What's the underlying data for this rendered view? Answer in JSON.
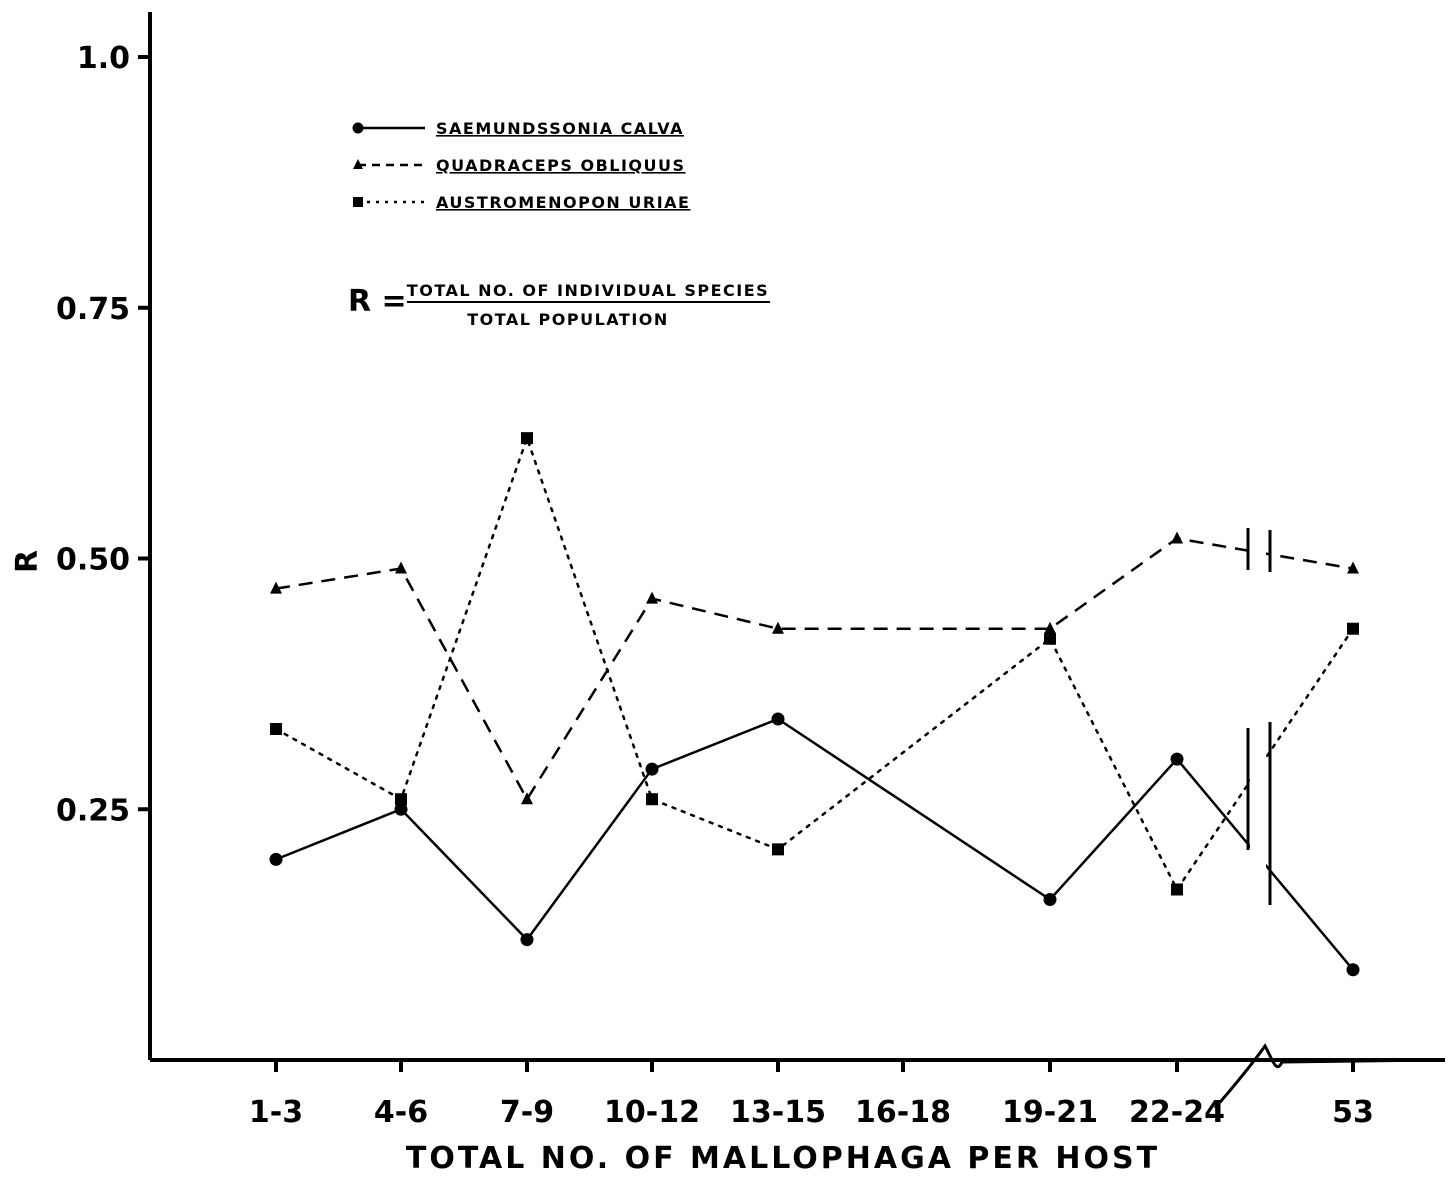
{
  "chart_data": {
    "type": "line",
    "categories": [
      "1-3",
      "4-6",
      "7-9",
      "10-12",
      "13-15",
      "16-18",
      "19-21",
      "22-24",
      "53"
    ],
    "xlabel": "TOTAL NO. OF MALLOPHAGA PER HOST",
    "ylabel": "R",
    "ylim": [
      0,
      1.0
    ],
    "yticks": [
      "0.25",
      "0.50",
      "0.75",
      "1.0"
    ],
    "ytick_values": [
      0.25,
      0.5,
      0.75,
      1.0
    ],
    "axis_break": "between 22-24 and 53",
    "legend_placement": "top-left",
    "formula": {
      "lhs": "R =",
      "numerator": "TOTAL NO. OF INDIVIDUAL SPECIES",
      "denominator": "TOTAL POPULATION"
    },
    "series": [
      {
        "name": "SAEMUNDSSONIA CALVA",
        "line_style": "solid",
        "marker": "circle",
        "x": [
          "1-3",
          "4-6",
          "7-9",
          "10-12",
          "13-15",
          "19-21",
          "22-24",
          "53"
        ],
        "values": [
          0.2,
          0.25,
          0.12,
          0.29,
          0.34,
          0.16,
          0.3,
          0.09
        ]
      },
      {
        "name": "QUADRACEPS OBLIQUUS",
        "line_style": "dashed",
        "marker": "triangle",
        "x": [
          "1-3",
          "4-6",
          "7-9",
          "10-12",
          "13-15",
          "19-21",
          "22-24",
          "53"
        ],
        "values": [
          0.47,
          0.49,
          0.26,
          0.46,
          0.43,
          0.43,
          0.52,
          0.49
        ]
      },
      {
        "name": "AUSTROMENOPON URIAE",
        "line_style": "dotted",
        "marker": "square",
        "x": [
          "1-3",
          "4-6",
          "7-9",
          "10-12",
          "13-15",
          "19-21",
          "22-24",
          "53"
        ],
        "values": [
          0.33,
          0.26,
          0.62,
          0.26,
          0.21,
          0.42,
          0.17,
          0.43
        ]
      }
    ]
  },
  "colors": {
    "ink": "#000000",
    "background": "#ffffff"
  }
}
